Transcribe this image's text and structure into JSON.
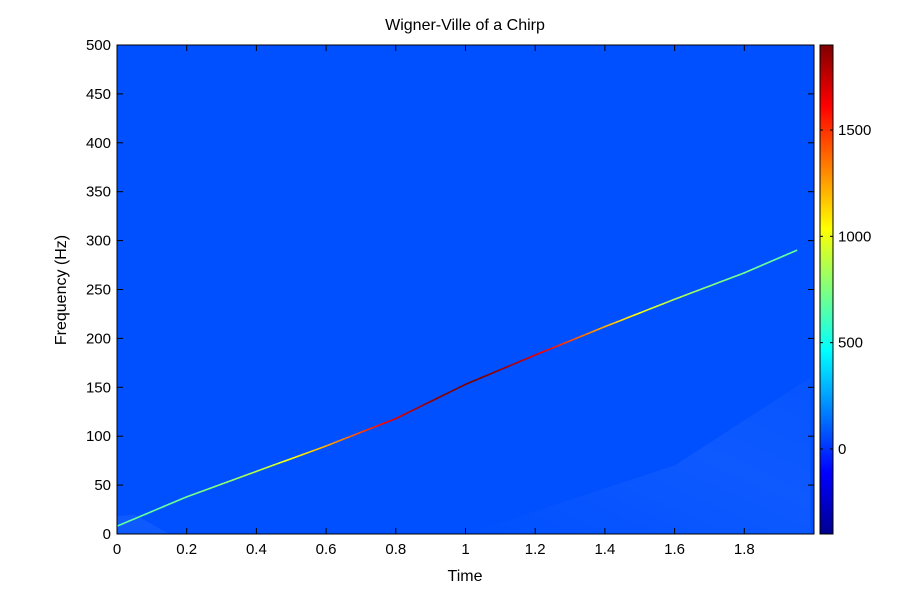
{
  "chart_data": {
    "type": "heatmap",
    "title": "Wigner-Ville of a Chirp",
    "xlabel": "Time",
    "ylabel": "Frequency (Hz)",
    "xlim": [
      0,
      2
    ],
    "ylim": [
      0,
      500
    ],
    "xticks": [
      0,
      0.2,
      0.4,
      0.6,
      0.8,
      1,
      1.2,
      1.4,
      1.6,
      1.8
    ],
    "yticks": [
      0,
      50,
      100,
      150,
      200,
      250,
      300,
      350,
      400,
      450,
      500
    ],
    "colormap": "jet",
    "background_value": 0,
    "colorbar": {
      "range": [
        -400,
        1900
      ],
      "ticks": [
        0,
        500,
        1000,
        1500
      ]
    },
    "ridge": {
      "description_values": "instantaneous frequency line of the chirp",
      "x": [
        0.0,
        0.2,
        0.4,
        0.6,
        0.8,
        1.0,
        1.2,
        1.4,
        1.6,
        1.8,
        1.95
      ],
      "y": [
        8,
        38,
        64,
        90,
        118,
        153,
        183,
        212,
        240,
        267,
        290
      ],
      "peak_value": 1900,
      "peak_x": 1.0
    },
    "grid": false,
    "legend": "none"
  }
}
